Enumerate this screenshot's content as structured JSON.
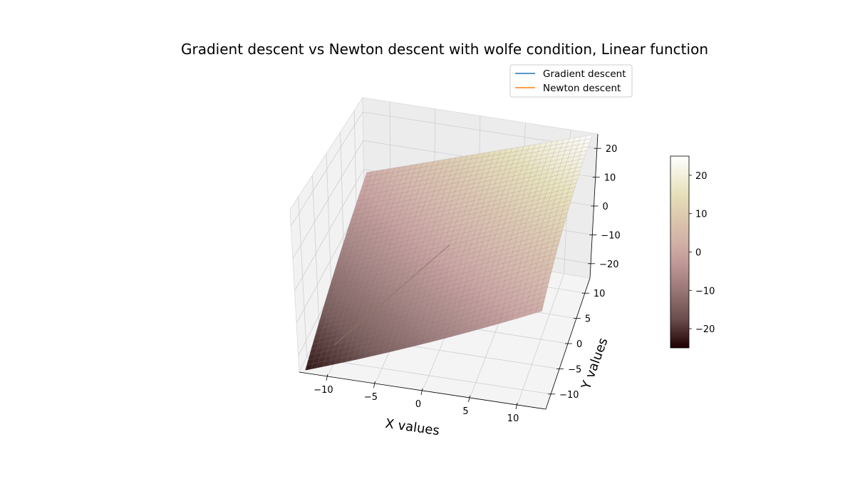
{
  "chart_data": {
    "type": "surface3d",
    "title": "Gradient descent vs Newton descent with wolfe condition, Linear function",
    "xlabel": "X values",
    "ylabel": "Y values",
    "zlabel": "",
    "xlim": [
      -13,
      13
    ],
    "ylim": [
      -13,
      13
    ],
    "zlim": [
      -25,
      25
    ],
    "x_ticks": [
      -10,
      -5,
      0,
      5,
      10
    ],
    "y_ticks": [
      -10,
      -5,
      0,
      5,
      10
    ],
    "z_ticks": [
      -20,
      -10,
      0,
      10,
      20
    ],
    "surface": {
      "expression": "z = x + y",
      "x_range": [
        -12.5,
        12.5
      ],
      "y_range": [
        -12.5,
        12.5
      ],
      "grid": 40,
      "colormap": "pink"
    },
    "series": [
      {
        "name": "Gradient descent",
        "color": "#1f77b4",
        "points": [
          [
            -10,
            -10,
            -20
          ],
          [
            0,
            0,
            0
          ]
        ]
      },
      {
        "name": "Newton descent",
        "color": "#ff7f0e",
        "points": [
          [
            -10,
            -10,
            -20
          ],
          [
            0,
            0,
            0
          ]
        ]
      }
    ],
    "legend": "top-right",
    "grid": true,
    "colorbar": {
      "ticks": [
        20,
        10,
        0,
        -10,
        -20
      ],
      "range": [
        -25,
        25
      ],
      "colormap": "pink"
    }
  }
}
